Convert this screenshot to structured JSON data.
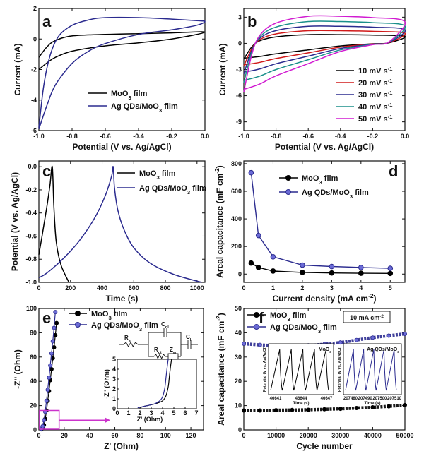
{
  "chart_data": [
    {
      "panel": "a",
      "type": "line",
      "xlabel": "Potential (V vs. Ag/AgCl)",
      "ylabel": "Current (mA)",
      "xlim": [
        -1.0,
        0.0
      ],
      "ylim": [
        -6,
        2
      ],
      "xticks": [
        -1.0,
        -0.8,
        -0.6,
        -0.4,
        -0.2,
        0.0
      ],
      "xtick_labels": [
        "-1.0",
        "-0.8",
        "-0.6",
        "-0.4",
        "-0.2",
        "0.0"
      ],
      "yticks": [
        -6,
        -4,
        -2,
        0,
        2
      ],
      "ytick_labels": [
        "-6",
        "-4",
        "-2",
        "0",
        "2"
      ],
      "legend": [
        "MoO3 film",
        "Ag QDs/MoO3 film"
      ],
      "series": [
        {
          "name": "MoO3 film",
          "color": "#000000",
          "upper": [
            [
              -1.0,
              -1.2
            ],
            [
              -0.95,
              -0.5
            ],
            [
              -0.9,
              -0.1
            ],
            [
              -0.8,
              0.2
            ],
            [
              -0.6,
              0.3
            ],
            [
              -0.4,
              0.35
            ],
            [
              -0.2,
              0.4
            ],
            [
              0.0,
              0.45
            ]
          ],
          "lower": [
            [
              0.0,
              0.45
            ],
            [
              -0.2,
              0.0
            ],
            [
              -0.4,
              -0.25
            ],
            [
              -0.6,
              -0.45
            ],
            [
              -0.8,
              -0.8
            ],
            [
              -0.9,
              -1.2
            ],
            [
              -0.95,
              -1.55
            ],
            [
              -1.0,
              -2.0
            ]
          ]
        },
        {
          "name": "Ag QDs/MoO3 film",
          "color": "#2b2b8f",
          "upper": [
            [
              -1.0,
              -5.8
            ],
            [
              -0.97,
              -3.0
            ],
            [
              -0.93,
              -1.0
            ],
            [
              -0.88,
              0.2
            ],
            [
              -0.8,
              0.9
            ],
            [
              -0.7,
              1.25
            ],
            [
              -0.6,
              1.4
            ],
            [
              -0.4,
              1.4
            ],
            [
              -0.2,
              1.3
            ],
            [
              -0.05,
              1.2
            ],
            [
              0.0,
              1.15
            ]
          ],
          "lower": [
            [
              0.0,
              1.05
            ],
            [
              -0.05,
              0.9
            ],
            [
              -0.2,
              0.6
            ],
            [
              -0.4,
              0.3
            ],
            [
              -0.6,
              -0.3
            ],
            [
              -0.7,
              -0.8
            ],
            [
              -0.8,
              -1.6
            ],
            [
              -0.9,
              -3.0
            ],
            [
              -0.95,
              -4.3
            ],
            [
              -1.0,
              -5.9
            ]
          ]
        }
      ]
    },
    {
      "panel": "b",
      "type": "line",
      "xlabel": "Potential (V vs. Ag/AgCl)",
      "ylabel": "Current (mA)",
      "xlim": [
        -1.0,
        0.0
      ],
      "ylim": [
        -10,
        4
      ],
      "xticks": [
        -1.0,
        -0.8,
        -0.6,
        -0.4,
        -0.2,
        0.0
      ],
      "xtick_labels": [
        "-1.0",
        "-0.8",
        "-0.6",
        "-0.4",
        "-0.2",
        "0.0"
      ],
      "yticks": [
        -9,
        -6,
        -3,
        0,
        3
      ],
      "ytick_labels": [
        "-9",
        "-6",
        "-3",
        "0",
        "3"
      ],
      "legend_unit": "mV s-1",
      "series": [
        {
          "name": "10 mV s-1",
          "rate": "10",
          "color": "#000000",
          "scale": 1.0
        },
        {
          "name": "20 mV s-1",
          "rate": "20",
          "color": "#d11a1a",
          "scale": 1.45
        },
        {
          "name": "30 mV s-1",
          "rate": "30",
          "color": "#2b2b8f",
          "scale": 1.95
        },
        {
          "name": "40 mV s-1",
          "rate": "40",
          "color": "#1a8f8a",
          "scale": 2.5
        },
        {
          "name": "50 mV s-1",
          "rate": "50",
          "color": "#d11ad1",
          "scale": 3.1
        }
      ],
      "base_upper": [
        [
          -1.0,
          -1.8
        ],
        [
          -0.95,
          -0.4
        ],
        [
          -0.9,
          0.3
        ],
        [
          -0.8,
          0.75
        ],
        [
          -0.6,
          1.0
        ],
        [
          -0.4,
          1.0
        ],
        [
          -0.2,
          0.95
        ],
        [
          0.0,
          0.8
        ]
      ],
      "base_lower": [
        [
          0.0,
          0.5
        ],
        [
          -0.1,
          0.05
        ],
        [
          -0.2,
          -0.05
        ],
        [
          -0.4,
          -0.3
        ],
        [
          -0.6,
          -0.75
        ],
        [
          -0.8,
          -1.2
        ],
        [
          -0.9,
          -1.5
        ],
        [
          -1.0,
          -1.7
        ]
      ]
    },
    {
      "panel": "c",
      "type": "line",
      "xlabel": "Time (s)",
      "ylabel": "Potential (V vs. Ag/AgCl)",
      "xlim": [
        0,
        1050
      ],
      "ylim": [
        -1.0,
        0.05
      ],
      "xticks": [
        0,
        200,
        400,
        600,
        800,
        1000
      ],
      "xtick_labels": [
        "0",
        "200",
        "400",
        "600",
        "800",
        "1000"
      ],
      "yticks": [
        -1.0,
        -0.8,
        -0.6,
        -0.4,
        -0.2,
        0.0
      ],
      "ytick_labels": [
        "-1.0",
        "-0.8",
        "-0.6",
        "-0.4",
        "-0.2",
        "0.0"
      ],
      "legend": [
        "MoO3 film",
        "Ag QDs/MoO3 film"
      ],
      "series": [
        {
          "name": "MoO3 film",
          "color": "#000000",
          "points": [
            [
              0,
              -0.76
            ],
            [
              20,
              -0.6
            ],
            [
              50,
              -0.35
            ],
            [
              70,
              -0.16
            ],
            [
              85,
              0.0
            ],
            [
              95,
              -0.35
            ],
            [
              110,
              -0.65
            ],
            [
              140,
              -0.85
            ],
            [
              190,
              -1.0
            ]
          ]
        },
        {
          "name": "Ag QDs/MoO3 film",
          "color": "#2b2b8f",
          "points": [
            [
              0,
              -0.96
            ],
            [
              50,
              -0.92
            ],
            [
              150,
              -0.8
            ],
            [
              250,
              -0.65
            ],
            [
              350,
              -0.45
            ],
            [
              420,
              -0.25
            ],
            [
              460,
              -0.08
            ],
            [
              470,
              0.0
            ],
            [
              478,
              -0.18
            ],
            [
              500,
              -0.38
            ],
            [
              540,
              -0.55
            ],
            [
              600,
              -0.7
            ],
            [
              700,
              -0.83
            ],
            [
              850,
              -0.93
            ],
            [
              1030,
              -1.0
            ]
          ]
        }
      ]
    },
    {
      "panel": "d",
      "type": "line",
      "xlabel": "Current density (mA cm-2)",
      "ylabel": "Areal capacitance (mF cm-2)",
      "xlim": [
        0,
        5.5
      ],
      "ylim": [
        -60,
        820
      ],
      "xticks": [
        0,
        1,
        2,
        3,
        4,
        5
      ],
      "xtick_labels": [
        "0",
        "1",
        "2",
        "3",
        "4",
        "5"
      ],
      "yticks": [
        0,
        200,
        400,
        600,
        800
      ],
      "ytick_labels": [
        "0",
        "200",
        "400",
        "600",
        "800"
      ],
      "legend": [
        "MoO3 film",
        "Ag QDs/MoO3 film"
      ],
      "series": [
        {
          "name": "MoO3 film",
          "color": "#000000",
          "marker": "#000000",
          "x": [
            0.25,
            0.5,
            1,
            2,
            3,
            4,
            5
          ],
          "y": [
            80,
            48,
            22,
            12,
            8,
            6,
            5
          ]
        },
        {
          "name": "Ag QDs/MoO3 film",
          "color": "#2b2b8f",
          "marker": "#6b6bd6",
          "x": [
            0.25,
            0.5,
            1,
            2,
            3,
            4,
            5
          ],
          "y": [
            735,
            280,
            125,
            65,
            55,
            48,
            42
          ]
        }
      ]
    },
    {
      "panel": "e",
      "type": "scatter",
      "xlabel": "Z' (Ohm)",
      "ylabel": "-Z'' (Ohm)",
      "xlim": [
        0,
        130
      ],
      "ylim": [
        0,
        100
      ],
      "xticks": [
        0,
        20,
        40,
        60,
        80,
        100,
        120
      ],
      "xtick_labels": [
        "0",
        "20",
        "40",
        "60",
        "80",
        "100",
        "120"
      ],
      "yticks": [
        0,
        20,
        40,
        60,
        80,
        100
      ],
      "ytick_labels": [
        "0",
        "20",
        "40",
        "60",
        "80",
        "100"
      ],
      "legend": [
        "MoO3 film",
        "Ag QDs/MoO3 film"
      ],
      "series": [
        {
          "name": "MoO3 film",
          "color": "#000000",
          "marker": "#000000",
          "x": [
            2,
            3,
            4,
            5,
            6,
            7,
            8,
            9,
            10,
            11,
            12,
            13,
            14
          ],
          "y": [
            0.5,
            1.5,
            4,
            9,
            16,
            24,
            32,
            41,
            50,
            59,
            68,
            78,
            88
          ]
        },
        {
          "name": "Ag QDs/MoO3 film",
          "color": "#2b2b8f",
          "marker": "#6b6bd6",
          "x": [
            2,
            3,
            4,
            5,
            6,
            7,
            8,
            9,
            10,
            11,
            12,
            13
          ],
          "y": [
            1,
            3,
            8,
            15,
            24,
            33,
            43,
            53,
            63,
            73,
            84,
            97
          ]
        }
      ],
      "inset": {
        "xlabel": "Z' (Ohm)",
        "ylabel": "-Z'' (Ohm)",
        "xlim": [
          0,
          7
        ],
        "ylim": [
          0,
          5
        ],
        "xticks": [
          0,
          1,
          2,
          3,
          4,
          5,
          6,
          7
        ],
        "xtick_labels": [
          "0",
          "1",
          "2",
          "3",
          "4",
          "5",
          "6",
          "7"
        ],
        "yticks": [
          0,
          1,
          2,
          3,
          4,
          5
        ],
        "ytick_labels": [
          "0",
          "1",
          "2",
          "3",
          "4",
          "5"
        ],
        "curves": [
          {
            "color": "#000000",
            "points": [
              [
                2.0,
                0.1
              ],
              [
                2.4,
                0.25
              ],
              [
                3.0,
                0.4
              ],
              [
                3.5,
                0.55
              ],
              [
                4.0,
                0.8
              ],
              [
                4.3,
                1.3
              ],
              [
                4.5,
                2.2
              ],
              [
                4.6,
                3.2
              ],
              [
                4.7,
                4.2
              ],
              [
                4.8,
                5.0
              ]
            ]
          },
          {
            "color": "#2b2b8f",
            "points": [
              [
                1.8,
                0.1
              ],
              [
                2.2,
                0.2
              ],
              [
                2.8,
                0.35
              ],
              [
                3.3,
                0.5
              ],
              [
                3.7,
                0.75
              ],
              [
                4.0,
                1.2
              ],
              [
                4.2,
                2.1
              ],
              [
                4.3,
                3.1
              ],
              [
                4.4,
                4.1
              ],
              [
                4.5,
                5.0
              ]
            ]
          }
        ]
      },
      "circuit_labels": [
        "Rs",
        "Cdl",
        "Cl",
        "Rct",
        "Zw"
      ]
    },
    {
      "panel": "f",
      "type": "scatter",
      "xlabel": "Cycle number",
      "ylabel": "Areal capacitance (mF cm-2)",
      "xlim": [
        0,
        50000
      ],
      "ylim": [
        0,
        50
      ],
      "xticks": [
        0,
        10000,
        20000,
        30000,
        40000,
        50000
      ],
      "xtick_labels": [
        "0",
        "10000",
        "20000",
        "30000",
        "40000",
        "50000"
      ],
      "yticks": [
        0,
        10,
        20,
        30,
        40,
        50
      ],
      "ytick_labels": [
        "0",
        "10",
        "20",
        "30",
        "40",
        "50"
      ],
      "legend": [
        "MoO3 film",
        "Ag QDs/MoO3 film"
      ],
      "annotation": "10 mA cm-2",
      "series": [
        {
          "name": "MoO3 film",
          "color": "#000000",
          "marker": "#000000",
          "x": [
            0,
            5000,
            10000,
            15000,
            20000,
            25000,
            30000,
            35000,
            40000,
            45000,
            50000
          ],
          "y": [
            8,
            8,
            8.1,
            8.2,
            8.3,
            8.5,
            8.7,
            9.0,
            9.3,
            9.7,
            10.2
          ]
        },
        {
          "name": "Ag QDs/MoO3 film",
          "color": "#2b2b8f",
          "marker": "#6b6bd6",
          "x": [
            0,
            5000,
            10000,
            15000,
            20000,
            25000,
            30000,
            35000,
            40000,
            45000,
            50000
          ],
          "y": [
            35.5,
            35,
            34.7,
            34.6,
            34.8,
            35.3,
            36.0,
            37.0,
            38.0,
            38.8,
            39.5
          ]
        }
      ],
      "insets": [
        {
          "label": "MoO3",
          "xticks": [
            "46641",
            "46644",
            "46647"
          ],
          "xlabel": "Time (s)",
          "ylabel": "Potential (V vs. Ag/AgCl)",
          "color": "#000000"
        },
        {
          "label": "Ag QDs/MoO3",
          "xticks": [
            "207480",
            "207490",
            "207500",
            "207510"
          ],
          "xlabel": "Time (s)",
          "ylabel": "Potential (V vs. Ag/AgCl)",
          "color": "#2b2b8f"
        }
      ]
    }
  ]
}
